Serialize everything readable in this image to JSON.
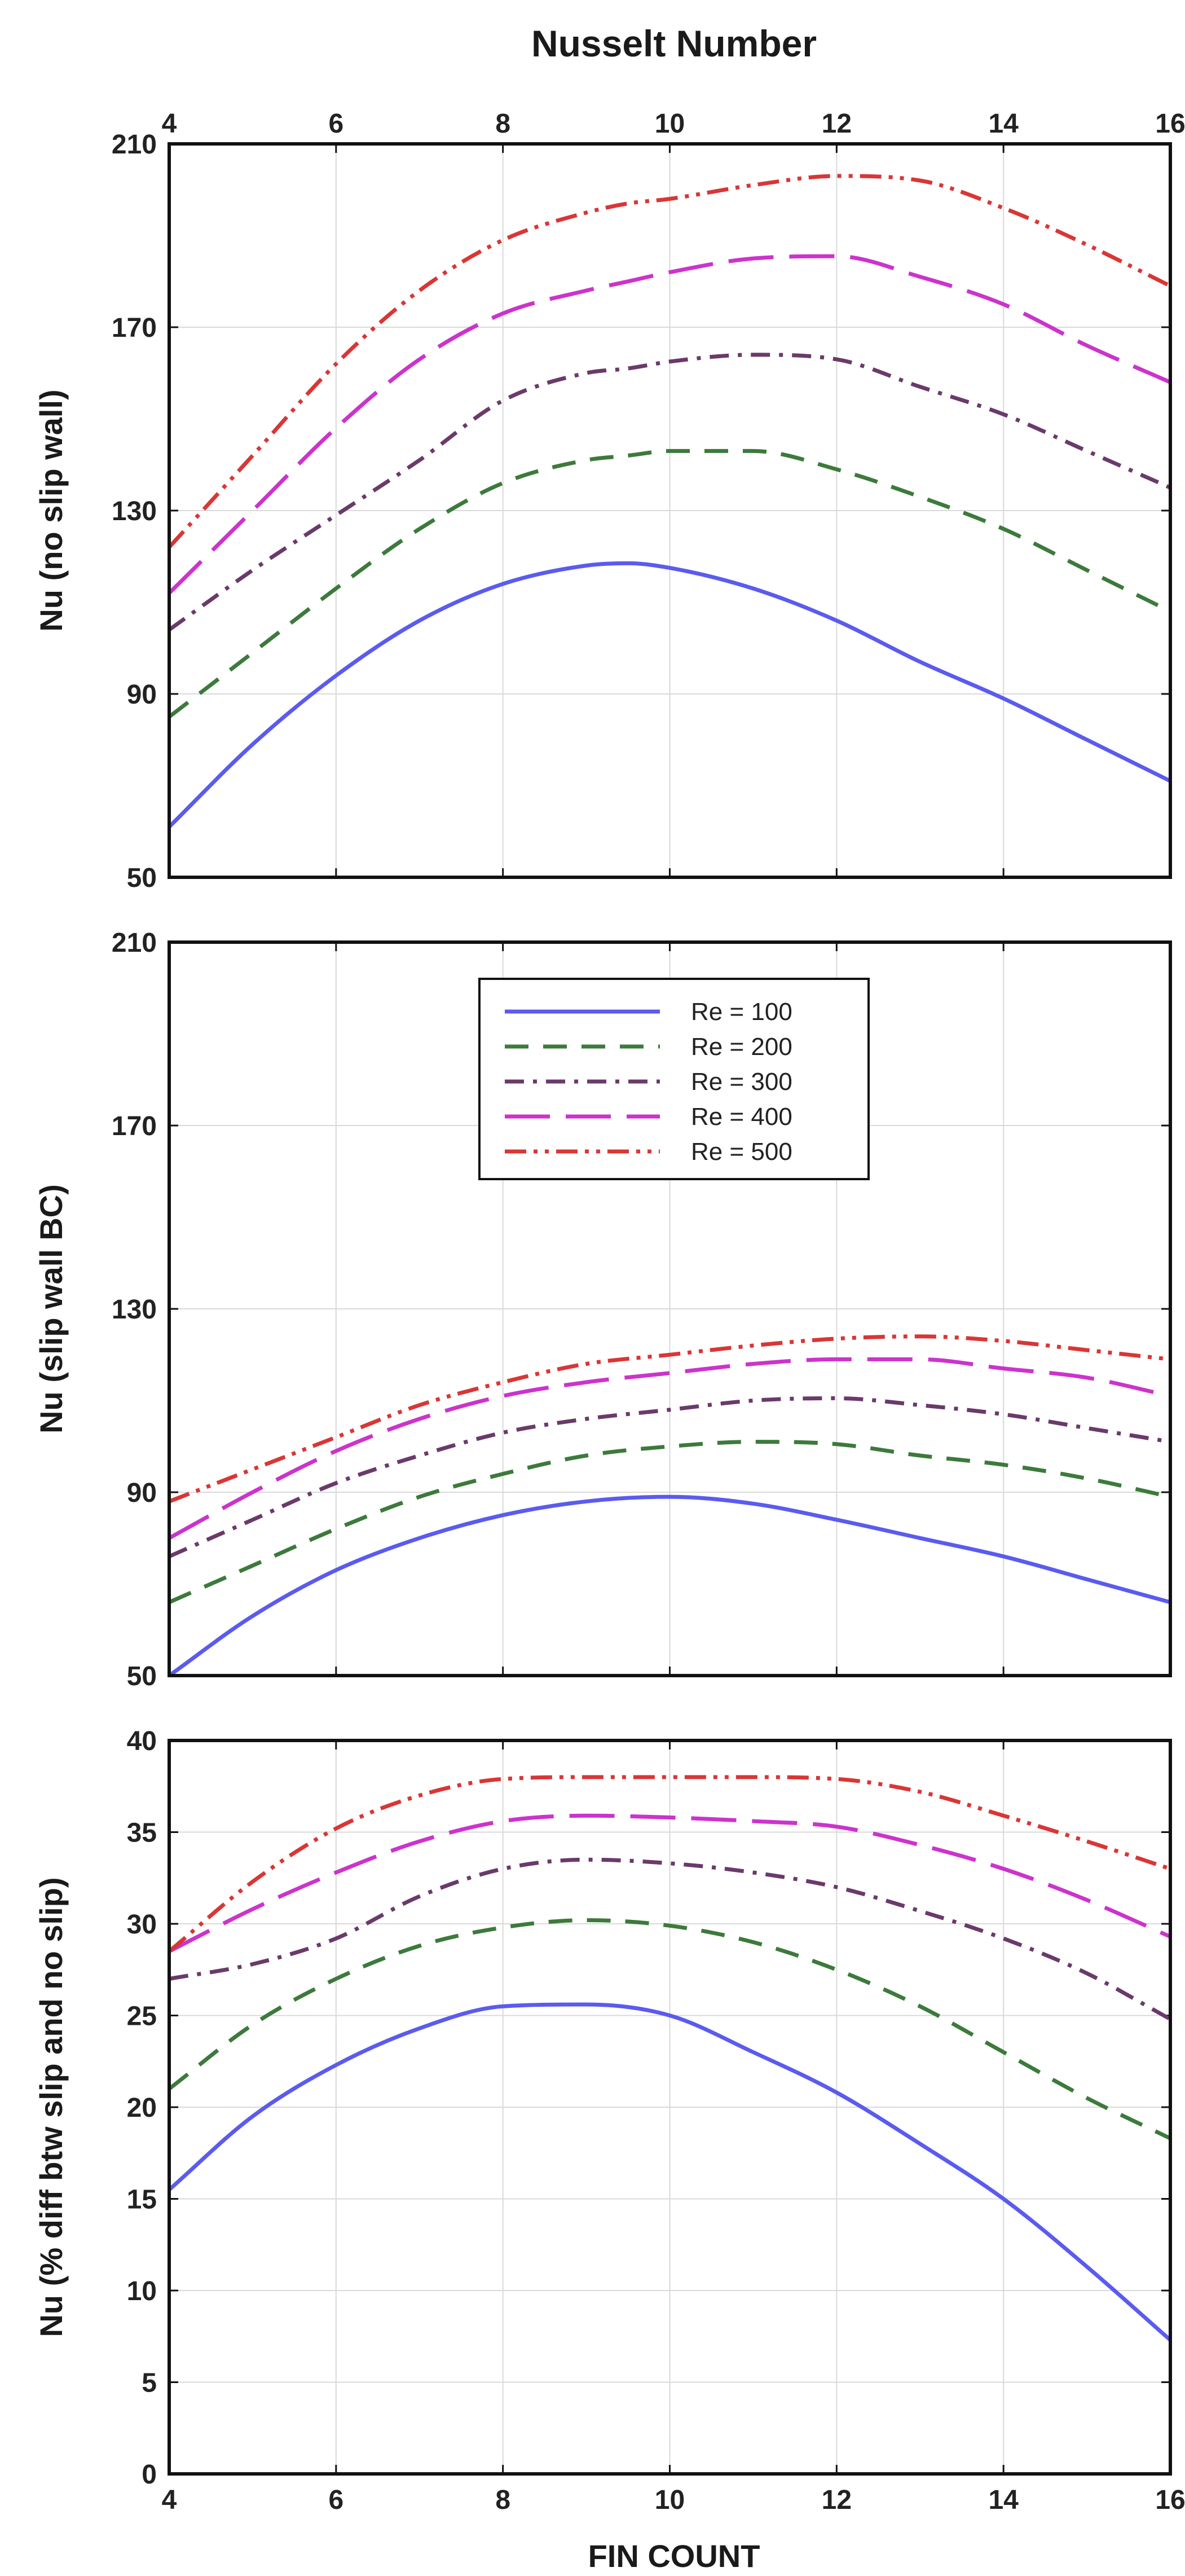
{
  "figure": {
    "title": "Nusselt Number",
    "xlabel": "FIN COUNT"
  },
  "chart_data": [
    {
      "type": "line",
      "title": "Nusselt Number",
      "xlabel": "",
      "ylabel": "Nu (no slip wall)",
      "xlim": [
        4,
        16
      ],
      "ylim": [
        50,
        210
      ],
      "xticks": [
        4,
        6,
        8,
        10,
        12,
        14,
        16
      ],
      "yticks": [
        50,
        90,
        130,
        170,
        210
      ],
      "x_tick_position": "top",
      "grid": true,
      "x": [
        4,
        5,
        6,
        7,
        8,
        9,
        9.5,
        10,
        11,
        12,
        13,
        14,
        15,
        16
      ],
      "series": [
        {
          "name": "Re = 100",
          "values": [
            61,
            79,
            94,
            106,
            114,
            118,
            118.5,
            117.5,
            113,
            106,
            97,
            89,
            80,
            71
          ]
        },
        {
          "name": "Re = 200",
          "values": [
            85,
            99,
            113,
            126,
            136,
            141,
            142,
            143,
            143,
            139,
            133,
            126,
            117,
            108
          ]
        },
        {
          "name": "Re = 300",
          "values": [
            104,
            117,
            129,
            141,
            154,
            160,
            161,
            162.5,
            164,
            163,
            157,
            151,
            143,
            135
          ]
        },
        {
          "name": "Re = 400",
          "values": [
            112,
            130,
            148,
            163,
            173,
            178,
            180,
            182,
            185,
            185.5,
            181,
            175,
            166,
            158
          ]
        },
        {
          "name": "Re = 500",
          "values": [
            122,
            142,
            162,
            178,
            189,
            195,
            197,
            198,
            201,
            203,
            202,
            196,
            188,
            179
          ]
        }
      ]
    },
    {
      "type": "line",
      "title": "",
      "xlabel": "",
      "ylabel": "Nu (slip wall BC)",
      "xlim": [
        4,
        16
      ],
      "ylim": [
        50,
        210
      ],
      "xticks": [
        4,
        6,
        8,
        10,
        12,
        14,
        16
      ],
      "yticks": [
        50,
        90,
        130,
        170,
        210
      ],
      "grid": true,
      "legend": {
        "location": "upper-center",
        "entries": [
          "Re = 100",
          "Re = 200",
          "Re = 300",
          "Re = 400",
          "Re = 500"
        ]
      },
      "x": [
        4,
        5,
        6,
        7,
        8,
        9,
        10,
        11,
        12,
        13,
        14,
        15,
        16
      ],
      "series": [
        {
          "name": "Re = 100",
          "values": [
            50,
            63,
            73,
            80,
            85,
            88,
            89,
            87.5,
            84,
            80,
            76,
            71,
            66
          ]
        },
        {
          "name": "Re = 200",
          "values": [
            66,
            74,
            82,
            89,
            94,
            98,
            100,
            101,
            100.5,
            98,
            96,
            93,
            89
          ]
        },
        {
          "name": "Re = 300",
          "values": [
            76,
            84,
            92,
            98,
            103,
            106,
            108,
            110,
            110.5,
            109,
            107,
            104,
            101
          ]
        },
        {
          "name": "Re = 400",
          "values": [
            80,
            90,
            99,
            106,
            111,
            114,
            116,
            118,
            119,
            119,
            117,
            115,
            111
          ]
        },
        {
          "name": "Re = 500",
          "values": [
            88,
            95,
            102,
            109,
            114,
            118,
            120,
            122,
            123.5,
            124,
            123,
            121,
            119
          ]
        }
      ]
    },
    {
      "type": "line",
      "title": "",
      "xlabel": "FIN COUNT",
      "ylabel": "Nu (% diff btw slip and no slip)",
      "xlim": [
        4,
        16
      ],
      "ylim": [
        0,
        40
      ],
      "xticks": [
        4,
        6,
        8,
        10,
        12,
        14,
        16
      ],
      "yticks": [
        0,
        5,
        10,
        15,
        20,
        25,
        30,
        35,
        40
      ],
      "grid": true,
      "x": [
        4,
        5,
        6,
        7,
        8,
        9,
        10,
        11,
        12,
        13,
        14,
        15,
        16
      ],
      "series": [
        {
          "name": "Re = 100",
          "values": [
            15.5,
            19.5,
            22.3,
            24.3,
            25.5,
            25.6,
            25,
            23,
            20.8,
            18,
            15,
            11.3,
            7.3
          ]
        },
        {
          "name": "Re = 200",
          "values": [
            21,
            24.5,
            27,
            28.8,
            29.8,
            30.2,
            29.9,
            29,
            27.5,
            25.5,
            23,
            20.5,
            18.3
          ]
        },
        {
          "name": "Re = 300",
          "values": [
            27,
            27.8,
            29.2,
            31.5,
            33,
            33.5,
            33.3,
            32.8,
            32,
            30.7,
            29.2,
            27.3,
            24.8
          ]
        },
        {
          "name": "Re = 400",
          "values": [
            28.5,
            30.8,
            32.8,
            34.5,
            35.6,
            35.9,
            35.8,
            35.6,
            35.3,
            34.3,
            33,
            31.3,
            29.3
          ]
        },
        {
          "name": "Re = 500",
          "values": [
            28.5,
            32.3,
            35.2,
            37,
            37.9,
            38,
            38,
            38,
            37.9,
            37.2,
            35.9,
            34.5,
            33
          ]
        }
      ]
    }
  ],
  "styles": {
    "Re = 100": {
      "color": "#5b5bef",
      "dash": ""
    },
    "Re = 200": {
      "color": "#3c7a3c",
      "dash": "42 26"
    },
    "Re = 300": {
      "color": "#6a3a6a",
      "dash": "34 16 7 16"
    },
    "Re = 400": {
      "color": "#cc33cc",
      "dash": "80 28"
    },
    "Re = 500": {
      "color": "#d93636",
      "dash": "38 13 7 13 7 13"
    }
  }
}
